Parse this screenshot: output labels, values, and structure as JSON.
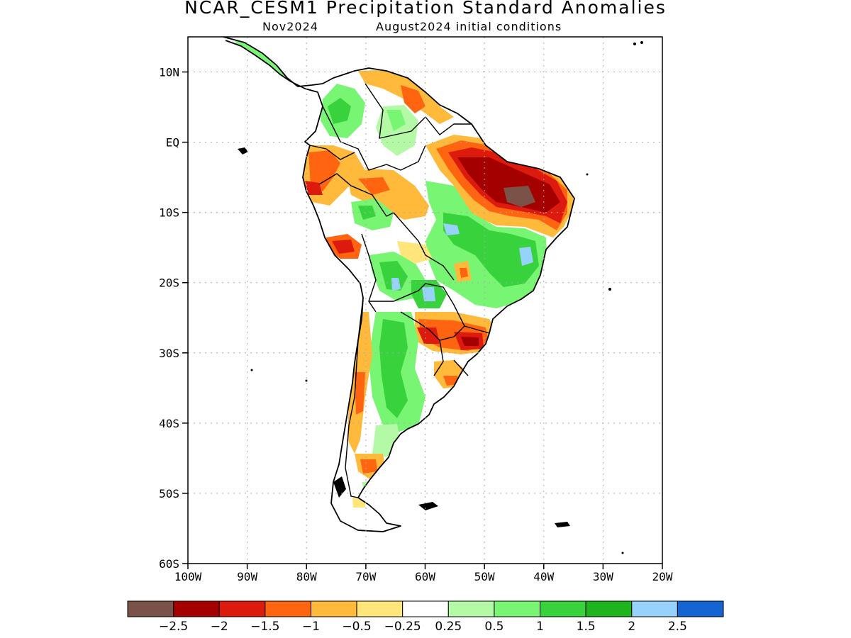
{
  "title": "NCAR_CESM1 Precipitation Standard Anomalies",
  "subtitle_left": "Nov2024",
  "subtitle_right": "August2024 initial conditions",
  "map": {
    "lon_range": [
      -100,
      -20
    ],
    "lat_range": [
      -60,
      15
    ],
    "lat_ticks": [
      {
        "value": 10,
        "label": "10N"
      },
      {
        "value": 0,
        "label": "EQ"
      },
      {
        "value": -10,
        "label": "10S"
      },
      {
        "value": -20,
        "label": "20S"
      },
      {
        "value": -30,
        "label": "30S"
      },
      {
        "value": -40,
        "label": "40S"
      },
      {
        "value": -50,
        "label": "50S"
      },
      {
        "value": -60,
        "label": "60S"
      }
    ],
    "lon_ticks": [
      {
        "value": -100,
        "label": "100W"
      },
      {
        "value": -90,
        "label": "90W"
      },
      {
        "value": -80,
        "label": "80W"
      },
      {
        "value": -70,
        "label": "70W"
      },
      {
        "value": -60,
        "label": "60W"
      },
      {
        "value": -50,
        "label": "50W"
      },
      {
        "value": -40,
        "label": "40W"
      },
      {
        "value": -30,
        "label": "30W"
      },
      {
        "value": -20,
        "label": "20W"
      }
    ],
    "grid": true
  },
  "colorbar": {
    "colors": [
      "#7a5248",
      "#a50000",
      "#dc1a0e",
      "#ff6410",
      "#ffb93b",
      "#ffe57a",
      "#ffffff",
      "#b4faa6",
      "#78f573",
      "#37d23c",
      "#1eb41e",
      "#96d2fa",
      "#1464d2"
    ],
    "labels": [
      "−2.5",
      "−2",
      "−1.5",
      "−1",
      "−0.5",
      "−0.25",
      "0.25",
      "0.5",
      "1",
      "1.5",
      "2",
      "2.5"
    ]
  }
}
